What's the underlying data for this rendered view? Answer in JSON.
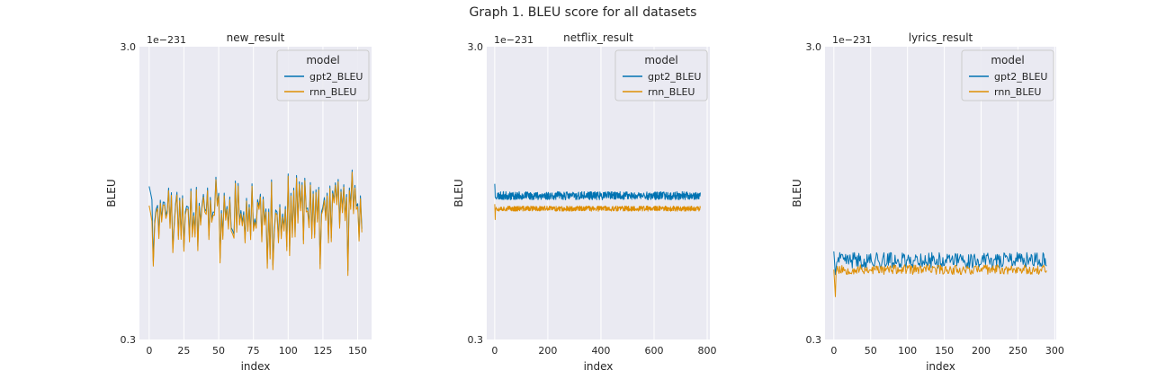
{
  "figure_title": "Graph 1. BLEU score for all datasets",
  "colors": {
    "gpt2_BLEU": "#0173b2",
    "rnn_BLEU": "#de8f05",
    "plot_bg": "#eaeaf2",
    "grid": "#ffffff"
  },
  "chart_data": [
    {
      "type": "line",
      "title": "new_result",
      "xlabel": "index",
      "ylabel": "BLEU",
      "y_offset_text": "1e−231",
      "yscale": "log",
      "ylim": [
        0.3,
        3.0
      ],
      "ytick_labels": [
        "3.0",
        "0.3"
      ],
      "xlim": [
        -7,
        160
      ],
      "xticks": [
        0,
        25,
        50,
        75,
        100,
        125,
        150
      ],
      "grid": "x-only",
      "legend": {
        "title": "model",
        "placement": "top-right",
        "entries": [
          "gpt2_BLEU",
          "rnn_BLEU"
        ]
      },
      "series": [
        {
          "name": "gpt2_BLEU",
          "n": 154,
          "base": 0.82,
          "noise": 0.26,
          "alt": 0.22,
          "seed": 11,
          "start_peak": 1.0
        },
        {
          "name": "rnn_BLEU",
          "n": 154,
          "base": 0.8,
          "noise": 0.26,
          "alt": 0.22,
          "seed": 11,
          "start_peak": 0.86
        }
      ]
    },
    {
      "type": "line",
      "title": "netflix_result",
      "xlabel": "index",
      "ylabel": "BLEU",
      "y_offset_text": "1e−231",
      "yscale": "log",
      "ylim": [
        0.3,
        3.0
      ],
      "ytick_labels": [
        "3.0",
        "0.3"
      ],
      "xlim": [
        -30,
        810
      ],
      "xticks": [
        0,
        200,
        400,
        600,
        800
      ],
      "grid": "x-only",
      "legend": {
        "title": "model",
        "placement": "top-right",
        "entries": [
          "gpt2_BLEU",
          "rnn_BLEU"
        ]
      },
      "series": [
        {
          "name": "gpt2_BLEU",
          "n": 775,
          "base": 0.93,
          "noise": 0.06,
          "alt": 0.0,
          "seed": 23,
          "start_peak": 1.02
        },
        {
          "name": "rnn_BLEU",
          "n": 775,
          "base": 0.84,
          "noise": 0.035,
          "alt": 0.0,
          "seed": 37,
          "start_peak": 0.87
        }
      ]
    },
    {
      "type": "line",
      "title": "lyrics_result",
      "xlabel": "index",
      "ylabel": "BLEU",
      "y_offset_text": "1e−231",
      "yscale": "log",
      "ylim": [
        0.3,
        3.0
      ],
      "ytick_labels": [
        "3.0",
        "0.3"
      ],
      "xlim": [
        -12,
        302
      ],
      "xticks": [
        0,
        50,
        100,
        150,
        200,
        250,
        300
      ],
      "grid": "x-only",
      "legend": {
        "title": "model",
        "placement": "top-right",
        "entries": [
          "gpt2_BLEU",
          "rnn_BLEU"
        ]
      },
      "series": [
        {
          "name": "gpt2_BLEU",
          "n": 290,
          "base": 0.56,
          "noise": 0.07,
          "alt": 0.0,
          "seed": 41,
          "start_peak": 0.6
        },
        {
          "name": "rnn_BLEU",
          "n": 290,
          "base": 0.52,
          "noise": 0.04,
          "alt": 0.0,
          "seed": 53,
          "start_peak": 0.52
        }
      ]
    }
  ]
}
